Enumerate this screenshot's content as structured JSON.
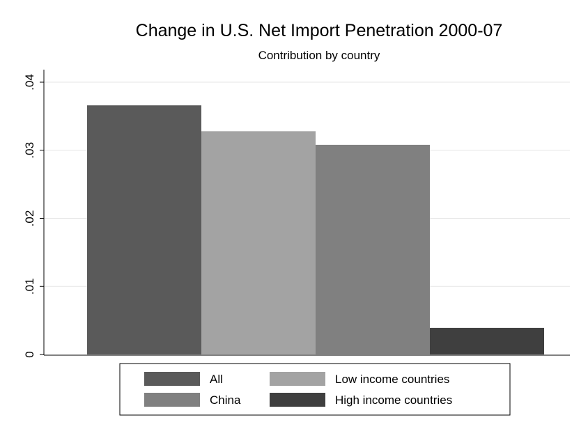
{
  "chart_data": {
    "type": "bar",
    "title": "Change in U.S. Net Import Penetration 2000-07",
    "subtitle": "Contribution by country",
    "xlabel": "",
    "ylabel": "",
    "ylim": [
      0,
      0.04
    ],
    "yticks": [
      {
        "value": 0,
        "label": "0"
      },
      {
        "value": 0.01,
        "label": ".01"
      },
      {
        "value": 0.02,
        "label": ".02"
      },
      {
        "value": 0.03,
        "label": ".03"
      },
      {
        "value": 0.04,
        "label": ".04"
      }
    ],
    "grid": true,
    "legend_position": "bottom",
    "series": [
      {
        "name": "All",
        "value": 0.0366,
        "color": "#5a5a5a"
      },
      {
        "name": "Low income countries",
        "value": 0.0328,
        "color": "#a3a3a3"
      },
      {
        "name": "China",
        "value": 0.0308,
        "color": "#808080"
      },
      {
        "name": "High income countries",
        "value": 0.0039,
        "color": "#3f3f3f"
      }
    ],
    "legend_order": [
      0,
      1,
      2,
      3
    ]
  }
}
